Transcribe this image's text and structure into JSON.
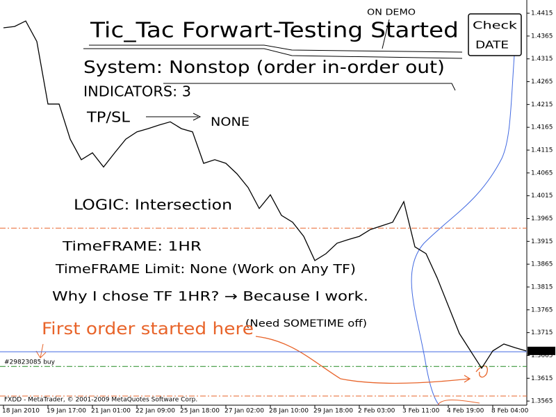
{
  "chart_data": {
    "type": "line",
    "color": "#000000",
    "values": [
      1.4383,
      1.4386,
      1.4398,
      1.4353,
      1.4216,
      1.4216,
      1.4139,
      1.4094,
      1.4109,
      1.4078,
      1.4109,
      1.4139,
      1.4155,
      1.4162,
      1.417,
      1.4177,
      1.4162,
      1.4155,
      1.4086,
      1.4094,
      1.4086,
      1.4063,
      1.4033,
      1.3987,
      1.4017,
      1.3972,
      1.3957,
      1.3926,
      1.3873,
      1.3888,
      1.3911,
      1.3919,
      1.3926,
      1.3941,
      1.3949,
      1.3957,
      1.4002,
      1.3903,
      1.3888,
      1.3835,
      1.3774,
      1.3713,
      1.3675,
      1.3637,
      1.3675,
      1.369,
      1.3682,
      1.3675
    ],
    "xlim": [
      0,
      47
    ],
    "xticks": [
      {
        "value": 0,
        "label": "18 Jan 2010"
      },
      {
        "value": 4,
        "label": "19 Jan 17:00"
      },
      {
        "value": 8,
        "label": "21 Jan 01:00"
      },
      {
        "value": 12,
        "label": "22 Jan 09:00"
      },
      {
        "value": 16,
        "label": "25 Jan 18:00"
      },
      {
        "value": 20,
        "label": "27 Jan 02:00"
      },
      {
        "value": 24,
        "label": "28 Jan 10:00"
      },
      {
        "value": 28,
        "label": "29 Jan 18:00"
      },
      {
        "value": 32,
        "label": "2 Feb 03:00"
      },
      {
        "value": 36,
        "label": "3 Feb 11:00"
      },
      {
        "value": 40,
        "label": "4 Feb 19:00"
      },
      {
        "value": 44,
        "label": "8 Feb 04:00"
      }
    ],
    "ylim": [
      1.3556,
      1.4444
    ],
    "yticks": [
      1.4415,
      1.4365,
      1.4315,
      1.4265,
      1.4215,
      1.4165,
      1.4115,
      1.4065,
      1.4015,
      1.3965,
      1.3915,
      1.3865,
      1.3815,
      1.3765,
      1.3715,
      1.3665,
      1.3615,
      1.3565
    ],
    "levels": [
      {
        "value": 1.3944,
        "color": "#e8642a",
        "style": "dashdot"
      },
      {
        "value": 1.3673,
        "color": "#4169e1",
        "style": "solid"
      },
      {
        "value": 1.3641,
        "color": "#228b22",
        "style": "dashdot"
      },
      {
        "value": 1.3576,
        "color": "#e8642a",
        "style": "dashdot"
      }
    ],
    "last_price": 1.3675,
    "order_label": "#29823085 buy",
    "footer": "FXDD - MetaTrader, © 2001-2009 MetaQuotes Software Corp.",
    "annotations": [
      {
        "text": "ON DEMO",
        "color": "#000000"
      },
      {
        "text": "Tic_Tac Forwart-Testing Started",
        "color": "#000000"
      },
      {
        "text": "Check",
        "color": "#000000"
      },
      {
        "text": "DATE",
        "color": "#000000"
      },
      {
        "text": "System: Nonstop (order in-order out)",
        "color": "#000000"
      },
      {
        "text": "INDICATORS: 3",
        "color": "#000000"
      },
      {
        "text": "TP/SL",
        "color": "#000000"
      },
      {
        "text": "NONE",
        "color": "#000000"
      },
      {
        "text": "LOGIC: Intersection",
        "color": "#000000"
      },
      {
        "text": "TimeFRAME: 1HR",
        "color": "#000000"
      },
      {
        "text": "TimeFRAME Limit: None (Work on Any TF)",
        "color": "#000000"
      },
      {
        "text": "Why I chose TF 1HR? → Because I work.",
        "color": "#000000"
      },
      {
        "text": "(Need SOMETIME off)",
        "color": "#000000"
      },
      {
        "text": "First order started here",
        "color": "#e8642a"
      }
    ]
  }
}
